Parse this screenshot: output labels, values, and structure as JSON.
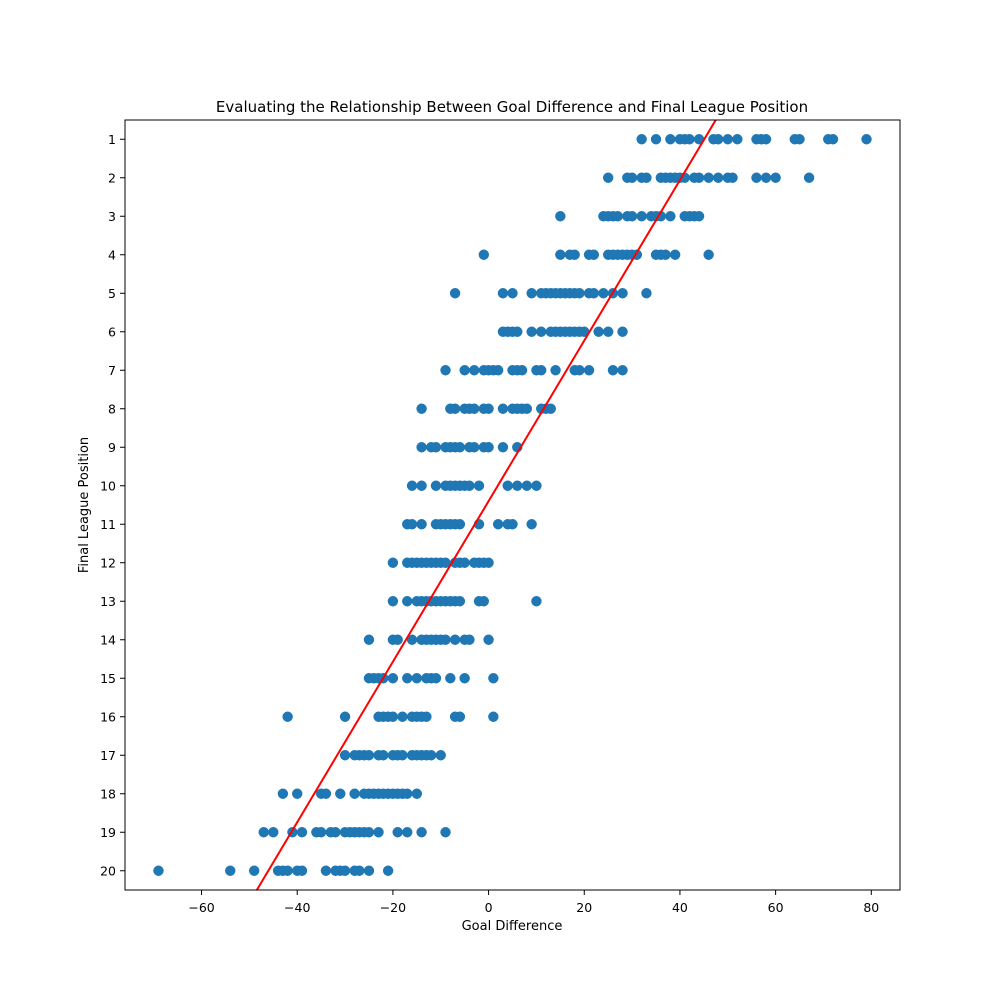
{
  "chart_data": {
    "type": "scatter",
    "title": "Evaluating the Relationship Between Goal Difference and Final League Position",
    "xlabel": "Goal Difference",
    "ylabel": "Final League Position",
    "xlim": [
      -76,
      86
    ],
    "ylim": [
      20.5,
      0.5
    ],
    "y_inverted": true,
    "grid": false,
    "legend": "none",
    "x_ticks": [
      -60,
      -40,
      -20,
      0,
      20,
      40,
      60,
      80
    ],
    "x_tick_labels": [
      "−60",
      "−40",
      "−20",
      "0",
      "20",
      "40",
      "60",
      "80"
    ],
    "y_ticks": [
      1,
      2,
      3,
      4,
      5,
      6,
      7,
      8,
      9,
      10,
      11,
      12,
      13,
      14,
      15,
      16,
      17,
      18,
      19,
      20
    ],
    "y_tick_labels": [
      "1",
      "2",
      "3",
      "4",
      "5",
      "6",
      "7",
      "8",
      "9",
      "10",
      "11",
      "12",
      "13",
      "14",
      "15",
      "16",
      "17",
      "18",
      "19",
      "20"
    ],
    "point_color": "#1f77b4",
    "line_color": "#ff0000",
    "trend_line": {
      "slope": -0.2085,
      "intercept": 10.4
    },
    "points": [
      {
        "position": 1,
        "goal_difference": [
          32,
          35,
          38,
          40,
          41,
          42,
          44,
          47,
          48,
          50,
          52,
          56,
          57,
          58,
          64,
          65,
          71,
          72,
          79
        ]
      },
      {
        "position": 2,
        "goal_difference": [
          25,
          29,
          30,
          32,
          33,
          36,
          37,
          38,
          39,
          40,
          41,
          43,
          44,
          46,
          48,
          50,
          51,
          56,
          58,
          60,
          67
        ]
      },
      {
        "position": 3,
        "goal_difference": [
          15,
          24,
          25,
          26,
          27,
          29,
          30,
          32,
          34,
          35,
          36,
          38,
          41,
          42,
          43,
          44
        ]
      },
      {
        "position": 4,
        "goal_difference": [
          -1,
          15,
          17,
          18,
          21,
          22,
          25,
          26,
          27,
          28,
          29,
          30,
          31,
          35,
          36,
          37,
          39,
          46
        ]
      },
      {
        "position": 5,
        "goal_difference": [
          -7,
          3,
          5,
          9,
          11,
          12,
          13,
          14,
          15,
          16,
          17,
          18,
          19,
          21,
          22,
          24,
          26,
          28,
          33
        ]
      },
      {
        "position": 6,
        "goal_difference": [
          3,
          4,
          5,
          6,
          9,
          11,
          13,
          14,
          15,
          16,
          17,
          18,
          19,
          20,
          23,
          25,
          28
        ]
      },
      {
        "position": 7,
        "goal_difference": [
          -9,
          -5,
          -3,
          -1,
          0,
          1,
          2,
          5,
          6,
          7,
          10,
          11,
          14,
          18,
          19,
          21,
          26,
          28
        ]
      },
      {
        "position": 8,
        "goal_difference": [
          -14,
          -8,
          -7,
          -5,
          -4,
          -3,
          -1,
          0,
          3,
          5,
          6,
          7,
          8,
          11,
          12,
          13
        ]
      },
      {
        "position": 9,
        "goal_difference": [
          -14,
          -12,
          -11,
          -9,
          -8,
          -7,
          -6,
          -4,
          -3,
          -1,
          0,
          3,
          6
        ]
      },
      {
        "position": 10,
        "goal_difference": [
          -16,
          -14,
          -11,
          -9,
          -8,
          -7,
          -6,
          -5,
          -4,
          -2,
          4,
          6,
          8,
          10
        ]
      },
      {
        "position": 11,
        "goal_difference": [
          -17,
          -16,
          -14,
          -11,
          -10,
          -9,
          -8,
          -7,
          -6,
          -2,
          2,
          4,
          5,
          9
        ]
      },
      {
        "position": 12,
        "goal_difference": [
          -20,
          -17,
          -16,
          -15,
          -14,
          -13,
          -12,
          -11,
          -10,
          -9,
          -7,
          -6,
          -5,
          -3,
          -2,
          -1,
          0
        ]
      },
      {
        "position": 13,
        "goal_difference": [
          -20,
          -17,
          -15,
          -14,
          -13,
          -12,
          -11,
          -10,
          -9,
          -8,
          -7,
          -6,
          -2,
          -1,
          10
        ]
      },
      {
        "position": 14,
        "goal_difference": [
          -25,
          -20,
          -19,
          -16,
          -14,
          -13,
          -12,
          -11,
          -10,
          -9,
          -7,
          -5,
          -4,
          0
        ]
      },
      {
        "position": 15,
        "goal_difference": [
          -25,
          -24,
          -23,
          -22,
          -20,
          -17,
          -15,
          -13,
          -12,
          -11,
          -8,
          -5,
          1
        ]
      },
      {
        "position": 16,
        "goal_difference": [
          -42,
          -30,
          -23,
          -22,
          -21,
          -20,
          -18,
          -16,
          -15,
          -14,
          -13,
          -7,
          -6,
          1
        ]
      },
      {
        "position": 17,
        "goal_difference": [
          -30,
          -28,
          -27,
          -26,
          -25,
          -23,
          -22,
          -20,
          -19,
          -18,
          -16,
          -15,
          -14,
          -13,
          -12,
          -10
        ]
      },
      {
        "position": 18,
        "goal_difference": [
          -43,
          -40,
          -35,
          -34,
          -31,
          -28,
          -26,
          -25,
          -24,
          -23,
          -22,
          -21,
          -20,
          -19,
          -18,
          -17,
          -15
        ]
      },
      {
        "position": 19,
        "goal_difference": [
          -47,
          -45,
          -41,
          -39,
          -36,
          -35,
          -33,
          -32,
          -30,
          -29,
          -28,
          -27,
          -26,
          -25,
          -23,
          -19,
          -17,
          -14,
          -9
        ]
      },
      {
        "position": 20,
        "goal_difference": [
          -69,
          -54,
          -49,
          -44,
          -43,
          -42,
          -40,
          -39,
          -34,
          -32,
          -31,
          -30,
          -28,
          -27,
          -25,
          -21
        ]
      }
    ]
  }
}
